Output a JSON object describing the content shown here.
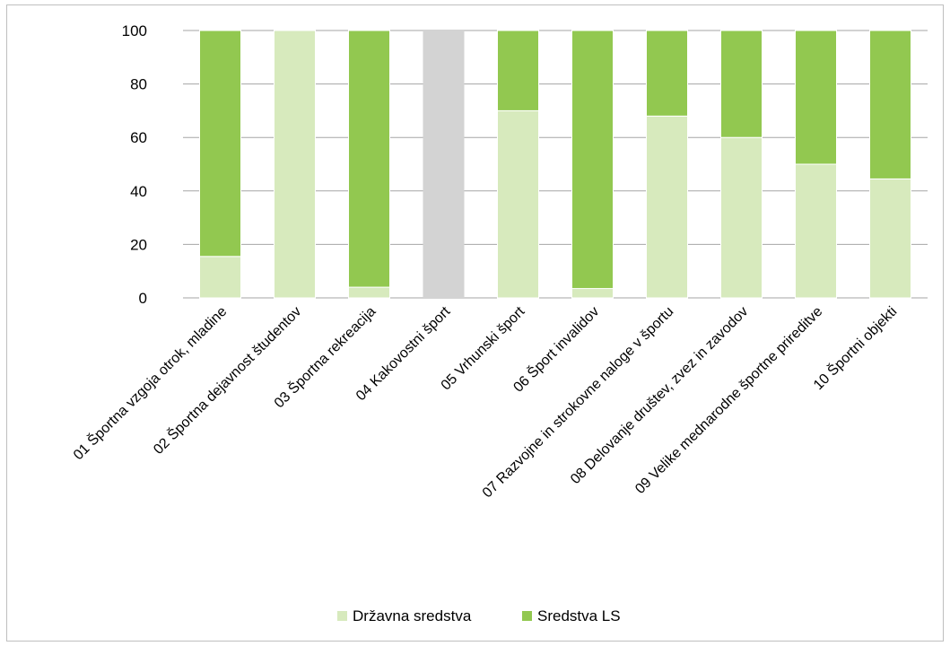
{
  "chart_data": {
    "type": "bar",
    "stacked": true,
    "title": "",
    "xlabel": "",
    "ylabel": "",
    "ylim": [
      0,
      100
    ],
    "yticks": [
      0,
      20,
      40,
      60,
      80,
      100
    ],
    "grid": true,
    "legend_position": "bottom",
    "categories": [
      "01 Športna vzgoja otrok, mladine",
      "02 Športna dejavnost študentov",
      "03 Športna rekreacija",
      "04 Kakovostni šport",
      "05 Vrhunski šport",
      "06 Šport invalidov",
      "07 Razvojne in strokovne naloge v športu",
      "08 Delovanje društev, zvez in zavodov",
      "09 Velike mednarodne športne prireditve",
      "10 Športni objekti"
    ],
    "series": [
      {
        "name": "Državna sredstva",
        "color": "#d7eabd",
        "values": [
          15.5,
          100,
          4,
          0,
          70,
          3.5,
          68,
          60,
          50,
          44.5
        ]
      },
      {
        "name": "Sredstva LS",
        "color": "#92c850",
        "values": [
          84.5,
          0,
          96,
          0,
          30,
          96.5,
          32,
          40,
          50,
          55.5
        ]
      }
    ],
    "special_bars": [
      {
        "category_index": 3,
        "color": "#d3d3d3",
        "value": 100
      }
    ],
    "colors": {
      "gridline": "#a6a6a6",
      "frame": "#bfbfbf",
      "special_bar": "#d3d3d3"
    }
  }
}
